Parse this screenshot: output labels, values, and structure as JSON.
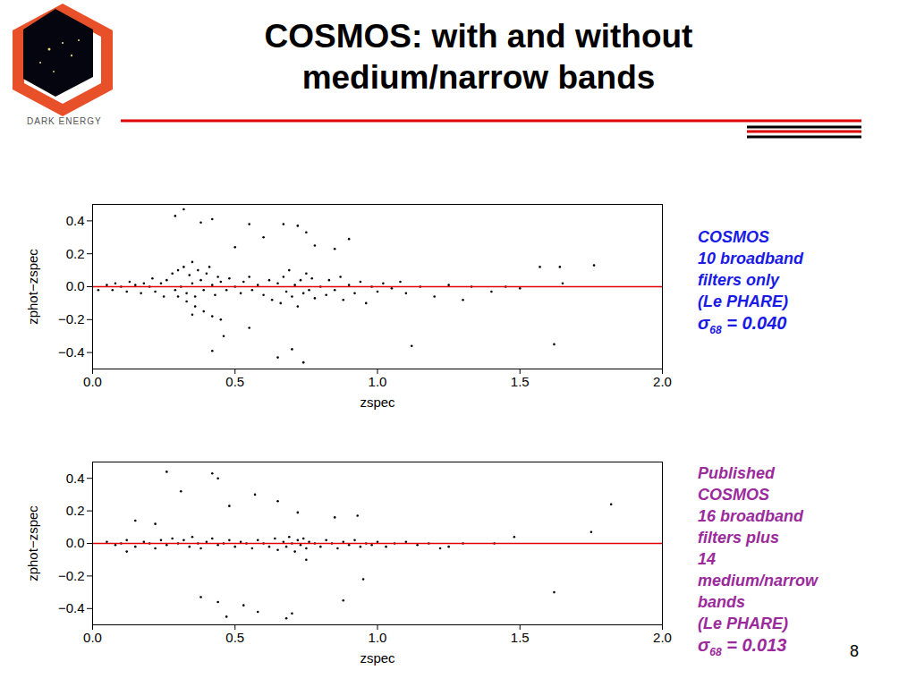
{
  "slide": {
    "title": [
      "COSMOS: with and without",
      "medium/narrow bands"
    ],
    "logo_text": "DARK ENERGY",
    "page_number": "8"
  },
  "chart_data": [
    {
      "type": "scatter",
      "xlabel": "zspec",
      "ylabel": "zphot−zspec",
      "xlim": [
        0,
        2
      ],
      "ylim": [
        -0.5,
        0.5
      ],
      "xticks": [
        {
          "value": 0,
          "label": "0.0"
        },
        {
          "value": 0.5,
          "label": "0.5"
        },
        {
          "value": 1,
          "label": "1.0"
        },
        {
          "value": 1.5,
          "label": "1.5"
        },
        {
          "value": 2,
          "label": "2.0"
        }
      ],
      "yticks": [
        {
          "value": -0.4,
          "label": "−0.4"
        },
        {
          "value": -0.2,
          "label": "−0.2"
        },
        {
          "value": 0,
          "label": "0.0"
        },
        {
          "value": 0.2,
          "label": "0.2"
        },
        {
          "value": 0.4,
          "label": "0.4"
        }
      ],
      "series": [
        {
          "type": "scatter",
          "color": "#000000",
          "marker": "dot",
          "x": [
            0.05,
            0.07,
            0.08,
            0.1,
            0.12,
            0.13,
            0.15,
            0.17,
            0.18,
            0.2,
            0.21,
            0.22,
            0.24,
            0.25,
            0.26,
            0.28,
            0.29,
            0.3,
            0.31,
            0.32,
            0.33,
            0.34,
            0.35,
            0.35,
            0.36,
            0.37,
            0.38,
            0.39,
            0.4,
            0.41,
            0.42,
            0.43,
            0.44,
            0.45,
            0.47,
            0.48,
            0.5,
            0.52,
            0.53,
            0.55,
            0.56,
            0.58,
            0.6,
            0.62,
            0.63,
            0.65,
            0.66,
            0.67,
            0.68,
            0.69,
            0.7,
            0.71,
            0.72,
            0.73,
            0.74,
            0.75,
            0.76,
            0.77,
            0.78,
            0.8,
            0.82,
            0.83,
            0.85,
            0.87,
            0.88,
            0.9,
            0.92,
            0.94,
            0.96,
            0.98,
            1.0,
            1.02,
            1.05,
            1.08,
            1.1,
            1.15,
            1.2,
            1.25,
            1.3,
            1.33,
            1.4,
            1.5,
            1.65,
            0.3,
            0.33,
            0.36,
            0.39,
            0.42,
            0.45,
            0.32,
            0.29,
            0.38,
            0.42,
            0.55,
            0.67,
            0.72,
            0.6,
            0.75,
            0.9,
            0.5,
            0.78,
            0.85,
            0.46,
            0.55,
            0.65,
            0.7,
            0.74,
            0.42,
            0.35,
            1.12,
            1.62,
            1.57,
            1.64,
            1.76,
            1.45,
            0.02
          ],
          "values": [
            0.01,
            -0.02,
            0.02,
            0.0,
            -0.03,
            0.03,
            0.01,
            -0.04,
            0.02,
            0.0,
            0.05,
            -0.03,
            0.02,
            -0.06,
            0.04,
            0.08,
            -0.02,
            0.1,
            0.0,
            0.12,
            -0.04,
            0.07,
            0.15,
            0.02,
            -0.06,
            0.1,
            0.04,
            -0.02,
            0.08,
            0.12,
            0.01,
            -0.05,
            0.06,
            0.03,
            -0.02,
            0.05,
            0.0,
            -0.04,
            0.03,
            0.06,
            -0.02,
            0.01,
            -0.05,
            0.04,
            -0.08,
            0.02,
            -0.1,
            0.06,
            -0.03,
            0.1,
            -0.06,
            0.01,
            -0.12,
            0.04,
            -0.04,
            0.08,
            -0.02,
            0.05,
            -0.07,
            0.0,
            -0.05,
            0.04,
            -0.02,
            0.06,
            -0.08,
            0.01,
            -0.04,
            0.03,
            -0.1,
            0.0,
            -0.03,
            0.02,
            -0.01,
            0.03,
            -0.04,
            0.0,
            -0.06,
            0.01,
            -0.08,
            0.0,
            -0.03,
            -0.01,
            0.02,
            -0.06,
            -0.09,
            -0.12,
            -0.15,
            -0.18,
            -0.2,
            0.47,
            0.43,
            0.39,
            0.41,
            0.38,
            0.38,
            0.37,
            0.3,
            0.33,
            0.29,
            0.24,
            0.25,
            0.23,
            -0.3,
            -0.25,
            -0.43,
            -0.38,
            -0.46,
            -0.39,
            -0.17,
            -0.36,
            -0.35,
            0.12,
            0.12,
            0.13,
            0.0,
            -0.02
          ]
        },
        {
          "type": "line",
          "color": "#e00000",
          "x": [
            0,
            2
          ],
          "values": [
            0,
            0
          ]
        }
      ],
      "annotation": {
        "color": "#1a1ae6",
        "lines": [
          "COSMOS",
          "10 broadband",
          "filters only",
          "(Le PHARE)"
        ],
        "sigma": {
          "symbol": "σ",
          "subscript": "68",
          "text": " = 0.040"
        }
      }
    },
    {
      "type": "scatter",
      "xlabel": "zspec",
      "ylabel": "zphot−zspec",
      "xlim": [
        0,
        2
      ],
      "ylim": [
        -0.5,
        0.5
      ],
      "xticks": [
        {
          "value": 0,
          "label": "0.0"
        },
        {
          "value": 0.5,
          "label": "0.5"
        },
        {
          "value": 1,
          "label": "1.0"
        },
        {
          "value": 1.5,
          "label": "1.5"
        },
        {
          "value": 2,
          "label": "2.0"
        }
      ],
      "yticks": [
        {
          "value": -0.4,
          "label": "−0.4"
        },
        {
          "value": -0.2,
          "label": "−0.2"
        },
        {
          "value": 0,
          "label": "0.0"
        },
        {
          "value": 0.2,
          "label": "0.2"
        },
        {
          "value": 0.4,
          "label": "0.4"
        }
      ],
      "series": [
        {
          "type": "scatter",
          "color": "#000000",
          "marker": "dot",
          "x": [
            0.05,
            0.08,
            0.1,
            0.12,
            0.15,
            0.18,
            0.2,
            0.22,
            0.24,
            0.26,
            0.28,
            0.3,
            0.32,
            0.34,
            0.35,
            0.37,
            0.38,
            0.4,
            0.42,
            0.44,
            0.46,
            0.48,
            0.5,
            0.52,
            0.54,
            0.56,
            0.58,
            0.6,
            0.62,
            0.64,
            0.65,
            0.67,
            0.68,
            0.69,
            0.7,
            0.71,
            0.72,
            0.73,
            0.74,
            0.75,
            0.76,
            0.78,
            0.8,
            0.82,
            0.84,
            0.86,
            0.88,
            0.9,
            0.92,
            0.94,
            0.96,
            0.98,
            1.0,
            1.03,
            1.06,
            1.1,
            1.14,
            1.18,
            1.22,
            1.3,
            1.41,
            1.48,
            1.25,
            0.26,
            0.42,
            0.44,
            0.31,
            0.57,
            0.65,
            0.15,
            0.22,
            0.48,
            0.72,
            0.85,
            0.93,
            0.38,
            0.44,
            0.47,
            0.53,
            0.58,
            0.68,
            0.7,
            0.88,
            0.95,
            0.75,
            1.62,
            1.75,
            1.82,
            0.12
          ],
          "values": [
            0.01,
            -0.01,
            0.0,
            0.02,
            -0.02,
            0.01,
            0.0,
            -0.03,
            0.02,
            -0.01,
            0.03,
            0.0,
            0.02,
            -0.02,
            0.04,
            0.0,
            -0.03,
            0.01,
            0.03,
            -0.01,
            0.0,
            0.02,
            -0.02,
            0.01,
            0.0,
            -0.03,
            0.02,
            0.0,
            -0.02,
            0.03,
            -0.04,
            0.01,
            -0.02,
            0.04,
            0.0,
            -0.05,
            0.02,
            -0.01,
            0.03,
            -0.03,
            0.01,
            0.0,
            -0.02,
            0.02,
            0.0,
            -0.03,
            0.01,
            -0.01,
            0.02,
            -0.02,
            0.0,
            -0.01,
            0.01,
            -0.02,
            0.0,
            0.01,
            -0.01,
            0.0,
            -0.03,
            0.0,
            0.0,
            0.04,
            -0.02,
            0.44,
            0.43,
            0.4,
            0.32,
            0.3,
            0.26,
            0.14,
            0.12,
            0.23,
            0.19,
            0.16,
            0.17,
            -0.33,
            -0.36,
            -0.45,
            -0.38,
            -0.42,
            -0.46,
            -0.43,
            -0.35,
            -0.22,
            -0.1,
            -0.3,
            0.07,
            0.24,
            -0.05
          ]
        },
        {
          "type": "line",
          "color": "#e00000",
          "x": [
            0,
            2
          ],
          "values": [
            0,
            0
          ]
        }
      ],
      "annotation": {
        "color": "#9b2a9b",
        "lines": [
          "Published",
          "COSMOS",
          "16 broadband",
          "filters plus",
          "14",
          "medium/narrow",
          "bands",
          "(Le PHARE)"
        ],
        "sigma": {
          "symbol": "σ",
          "subscript": "68",
          "text": " = 0.013"
        }
      }
    }
  ]
}
